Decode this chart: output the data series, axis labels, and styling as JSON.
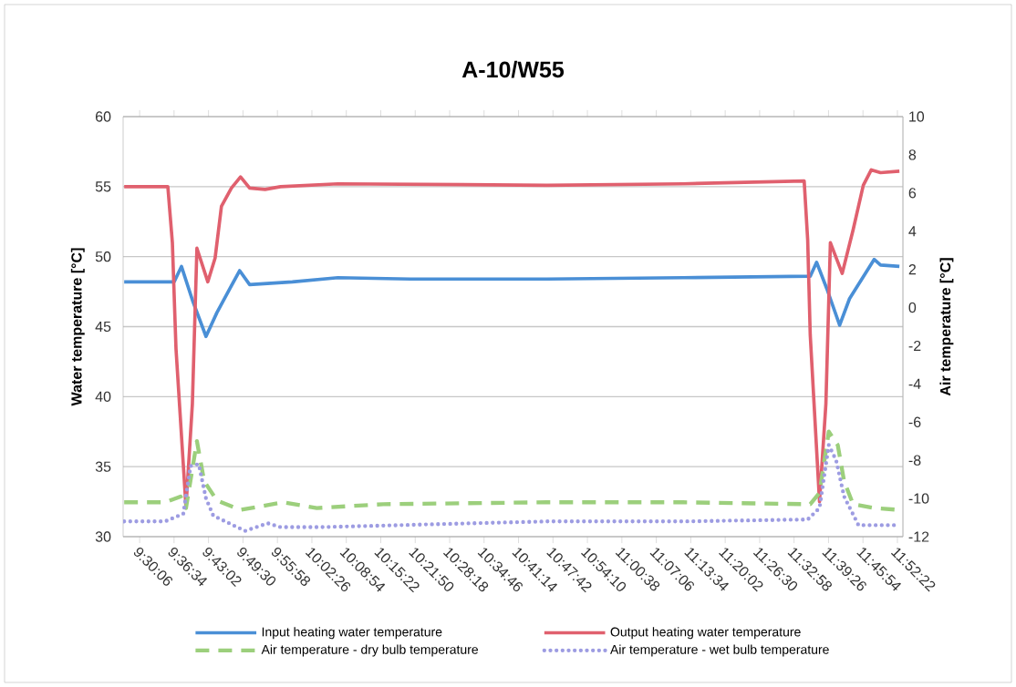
{
  "chart_data": {
    "type": "line",
    "title": "A-10/W55",
    "ylabel": "Water temperature [°C]",
    "y2label": "Air temperature [°C]",
    "xlim": [
      9.45,
      11.89
    ],
    "ylim": [
      30,
      60
    ],
    "y2lim": [
      -12,
      10
    ],
    "xticks": [
      {
        "value": 9.5017,
        "label": "9:30:06"
      },
      {
        "value": 9.6094,
        "label": "9:36:34"
      },
      {
        "value": 9.7172,
        "label": "9:43:02"
      },
      {
        "value": 9.825,
        "label": "9:49:30"
      },
      {
        "value": 9.9328,
        "label": "9:55:58"
      },
      {
        "value": 10.0406,
        "label": "10:02:26"
      },
      {
        "value": 10.1483,
        "label": "10:08:54"
      },
      {
        "value": 10.2561,
        "label": "10:15:22"
      },
      {
        "value": 10.3639,
        "label": "10:21:50"
      },
      {
        "value": 10.4717,
        "label": "10:28:18"
      },
      {
        "value": 10.5794,
        "label": "10:34:46"
      },
      {
        "value": 10.6872,
        "label": "10:41:14"
      },
      {
        "value": 10.795,
        "label": "10:47:42"
      },
      {
        "value": 10.9028,
        "label": "10:54:10"
      },
      {
        "value": 11.0106,
        "label": "11:00:38"
      },
      {
        "value": 11.1183,
        "label": "11:07:06"
      },
      {
        "value": 11.2261,
        "label": "11:13:34"
      },
      {
        "value": 11.3339,
        "label": "11:20:02"
      },
      {
        "value": 11.4417,
        "label": "11:26:30"
      },
      {
        "value": 11.5494,
        "label": "11:32:58"
      },
      {
        "value": 11.6572,
        "label": "11:39:26"
      },
      {
        "value": 11.765,
        "label": "11:45:54"
      },
      {
        "value": 11.8728,
        "label": "11:52:22"
      }
    ],
    "yticks": [
      30,
      35,
      40,
      45,
      50,
      55,
      60
    ],
    "y2ticks": [
      -12,
      -10,
      -8,
      -6,
      -4,
      -2,
      0,
      2,
      4,
      6,
      8,
      10
    ],
    "grid": "y",
    "legend": "bottom",
    "series": [
      {
        "name": "Input heating water temperature",
        "color": "#4a8fd6",
        "line_style": "solid",
        "x": [
          9.4533,
          9.6098,
          9.6325,
          9.6667,
          9.7093,
          9.7434,
          9.8145,
          9.8458,
          9.9795,
          10.122,
          10.349,
          10.776,
          11.202,
          11.6,
          11.62,
          11.652,
          11.692,
          11.723,
          11.8,
          11.82,
          11.879
        ],
        "values": [
          48.2,
          48.2,
          49.3,
          46.9,
          44.3,
          46.0,
          49.0,
          48.0,
          48.2,
          48.5,
          48.4,
          48.4,
          48.5,
          48.6,
          49.6,
          47.7,
          45.1,
          47.0,
          49.8,
          49.4,
          49.3
        ]
      },
      {
        "name": "Output heating water temperature",
        "color": "#e0606e",
        "line_style": "solid",
        "x": [
          9.4533,
          9.5899,
          9.6041,
          9.6155,
          9.6467,
          9.6667,
          9.6809,
          9.715,
          9.7378,
          9.7577,
          9.7889,
          9.8174,
          9.8458,
          9.8942,
          9.9425,
          10.122,
          10.776,
          11.202,
          11.581,
          11.592,
          11.6,
          11.629,
          11.649,
          11.663,
          11.7,
          11.734,
          11.766,
          11.791,
          11.82,
          11.879
        ],
        "values": [
          55.0,
          55.0,
          51.0,
          43.4,
          32.1,
          39.5,
          50.6,
          48.2,
          49.9,
          53.6,
          54.9,
          55.7,
          54.9,
          54.8,
          55.0,
          55.2,
          55.1,
          55.2,
          55.4,
          51.2,
          44.4,
          32.5,
          39.5,
          51.0,
          48.8,
          51.9,
          55.1,
          56.2,
          56.0,
          56.1
        ]
      },
      {
        "name": "Air temperature - dry bulb temperature",
        "color": "#9ccf7c",
        "line_style": "dashed",
        "axis": "y2",
        "x": [
          9.4533,
          9.5813,
          9.6297,
          9.6467,
          9.6809,
          9.7036,
          9.7434,
          9.8174,
          9.9511,
          10.056,
          10.264,
          10.776,
          11.202,
          11.6,
          11.629,
          11.658,
          11.686,
          11.706,
          11.734,
          11.8,
          11.879
        ],
        "values": [
          -10.2,
          -10.2,
          -9.9,
          -10.5,
          -7.0,
          -9.1,
          -10.1,
          -10.6,
          -10.2,
          -10.5,
          -10.3,
          -10.2,
          -10.2,
          -10.3,
          -9.7,
          -6.5,
          -7.2,
          -9.1,
          -10.3,
          -10.5,
          -10.6
        ]
      },
      {
        "name": "Air temperature - wet bulb temperature",
        "color": "#9d9ce2",
        "line_style": "dotted",
        "axis": "y2",
        "x": [
          9.4533,
          9.5813,
          9.6382,
          9.661,
          9.6866,
          9.7093,
          9.7321,
          9.8316,
          9.9027,
          9.9425,
          10.073,
          10.776,
          11.202,
          11.592,
          11.629,
          11.658,
          11.681,
          11.706,
          11.751,
          11.879
        ],
        "values": [
          -11.2,
          -11.2,
          -10.8,
          -8.3,
          -8.2,
          -10.0,
          -10.9,
          -11.7,
          -11.3,
          -11.5,
          -11.5,
          -11.2,
          -11.2,
          -11.1,
          -10.5,
          -7.2,
          -8.0,
          -9.9,
          -11.4,
          -11.4
        ]
      }
    ]
  }
}
